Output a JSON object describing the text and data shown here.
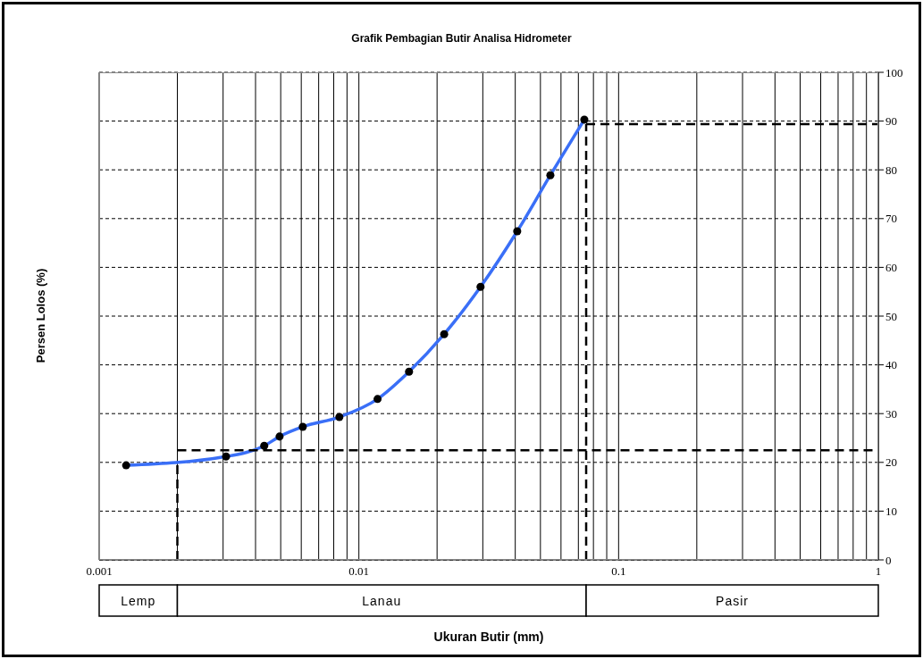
{
  "chart_data": {
    "type": "line",
    "title": "Grafik Pembagian Butir Analisa Hidrometer",
    "xlabel": "Ukuran Butir (mm)",
    "ylabel": "Persen Lolos (%)",
    "log": "x",
    "xlim": [
      0.001,
      1
    ],
    "xticks": [
      0.001,
      {
        "value": 0.002,
        "label": null
      },
      {
        "value": 0.003,
        "label": null
      },
      {
        "value": 0.004,
        "label": null
      },
      {
        "value": 0.005,
        "label": null
      },
      {
        "value": 0.006,
        "label": null
      },
      {
        "value": 0.007,
        "label": null
      },
      {
        "value": 0.008,
        "label": null
      },
      {
        "value": 0.009,
        "label": null
      },
      0.01,
      {
        "value": 0.02,
        "label": null
      },
      {
        "value": 0.03,
        "label": null
      },
      {
        "value": 0.04,
        "label": null
      },
      {
        "value": 0.05,
        "label": null
      },
      {
        "value": 0.06,
        "label": null
      },
      {
        "value": 0.07,
        "label": null
      },
      {
        "value": 0.08,
        "label": null
      },
      {
        "value": 0.09,
        "label": null
      },
      0.1,
      {
        "value": 0.2,
        "label": null
      },
      {
        "value": 0.3,
        "label": null
      },
      {
        "value": 0.4,
        "label": null
      },
      {
        "value": 0.5,
        "label": null
      },
      {
        "value": 0.6,
        "label": null
      },
      {
        "value": 0.7,
        "label": null
      },
      {
        "value": 0.8,
        "label": null
      },
      {
        "value": 0.9,
        "label": null
      },
      1
    ],
    "ylim": [
      0,
      100
    ],
    "yticks": [
      0,
      10,
      20,
      30,
      40,
      50,
      60,
      70,
      80,
      90,
      100
    ],
    "grid": true,
    "series": [
      {
        "type": "line",
        "color": "#3a6ff7",
        "marker": "none",
        "line_style": "solid",
        "x": [
          0.00127,
          0.00308,
          0.00432,
          0.00495,
          0.00608,
          0.00841,
          0.0118,
          0.0156,
          0.0213,
          0.0294,
          0.0407,
          0.0546,
          0.0738
        ],
        "values": [
          19.4,
          21.2,
          23.4,
          25.3,
          27.3,
          29.3,
          33,
          38.6,
          46.3,
          56,
          67.4,
          78.9,
          90.3
        ]
      },
      {
        "type": "scatter",
        "color": "#000000",
        "marker": "circle",
        "x": [
          0.00127,
          0.00308,
          0.00432,
          0.00495,
          0.00608,
          0.00841,
          0.0118,
          0.0156,
          0.0213,
          0.0294,
          0.0407,
          0.0546,
          0.0738
        ],
        "values": [
          19.4,
          21.2,
          23.4,
          25.3,
          27.3,
          29.3,
          33,
          38.6,
          46.3,
          56,
          67.4,
          78.9,
          90.3
        ]
      },
      {
        "type": "line",
        "color": "#000000",
        "marker": "none",
        "line_style": "dashed",
        "x": [
          0.002,
          0.002
        ],
        "values": [
          0,
          20.3
        ]
      },
      {
        "type": "line",
        "color": "#000000",
        "marker": "none",
        "line_style": "dashed",
        "x": [
          0.002,
          1
        ],
        "values": [
          22.5,
          22.5
        ]
      },
      {
        "type": "line",
        "color": "#000000",
        "marker": "none",
        "line_style": "dashed",
        "x": [
          0.075,
          0.075
        ],
        "values": [
          0,
          89.4
        ]
      },
      {
        "type": "line",
        "color": "#000000",
        "marker": "none",
        "line_style": "dashed",
        "x": [
          0.075,
          1
        ],
        "values": [
          89.4,
          89.4
        ]
      }
    ],
    "annotations": [
      "Lemp",
      "Lanau",
      "Pasir"
    ]
  }
}
